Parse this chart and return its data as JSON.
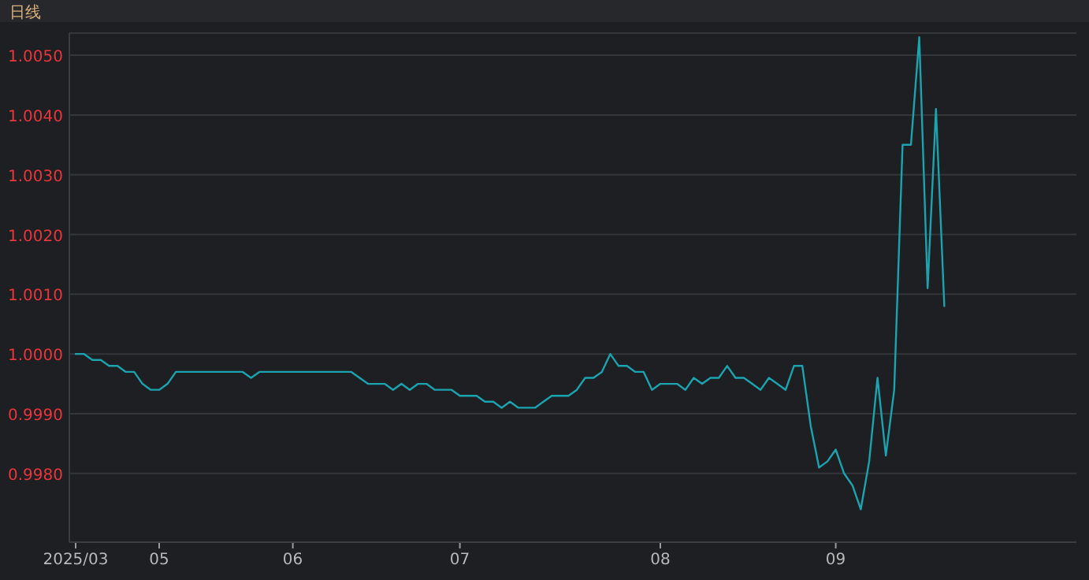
{
  "chart_data": {
    "type": "line",
    "title": "日线",
    "categories": [
      "2025/03",
      null,
      null,
      null,
      null,
      null,
      null,
      null,
      null,
      null,
      "05",
      null,
      null,
      null,
      null,
      null,
      null,
      null,
      null,
      null,
      null,
      null,
      null,
      null,
      null,
      null,
      "06",
      null,
      null,
      null,
      null,
      null,
      null,
      null,
      null,
      null,
      null,
      null,
      null,
      null,
      null,
      null,
      null,
      null,
      null,
      null,
      "07",
      null,
      null,
      null,
      null,
      null,
      null,
      null,
      null,
      null,
      null,
      null,
      null,
      null,
      null,
      null,
      null,
      null,
      null,
      null,
      null,
      null,
      null,
      null,
      "08",
      null,
      null,
      null,
      null,
      null,
      null,
      null,
      null,
      null,
      null,
      null,
      null,
      null,
      null,
      null,
      null,
      null,
      null,
      null,
      null,
      "09",
      null,
      null,
      null,
      null,
      null,
      null,
      null,
      null,
      null,
      null,
      null,
      null,
      null
    ],
    "series": [
      {
        "color": "#1ba3b0",
        "values": [
          1.0,
          1.0,
          0.9999,
          0.9999,
          0.9998,
          0.9998,
          0.9997,
          0.9997,
          0.9995,
          0.9994,
          0.9994,
          0.9995,
          0.9997,
          0.9997,
          0.9997,
          0.9997,
          0.9997,
          0.9997,
          0.9997,
          0.9997,
          0.9997,
          0.9996,
          0.9997,
          0.9997,
          0.9997,
          0.9997,
          0.9997,
          0.9997,
          0.9997,
          0.9997,
          0.9997,
          0.9997,
          0.9997,
          0.9997,
          0.9996,
          0.9995,
          0.9995,
          0.9995,
          0.9994,
          0.9995,
          0.9994,
          0.9995,
          0.9995,
          0.9994,
          0.9994,
          0.9994,
          0.9993,
          0.9993,
          0.9993,
          0.9992,
          0.9992,
          0.9991,
          0.9992,
          0.9991,
          0.9991,
          0.9991,
          0.9992,
          0.9993,
          0.9993,
          0.9993,
          0.9994,
          0.9996,
          0.9996,
          0.9997,
          1.0,
          0.9998,
          0.9998,
          0.9997,
          0.9997,
          0.9994,
          0.9995,
          0.9995,
          0.9995,
          0.9994,
          0.9996,
          0.9995,
          0.9996,
          0.9996,
          0.9998,
          0.9996,
          0.9996,
          0.9995,
          0.9994,
          0.9996,
          0.9995,
          0.9994,
          0.9998,
          0.9998,
          0.9988,
          0.9981,
          0.9982,
          0.9984,
          0.998,
          0.9978,
          0.9974,
          0.9982,
          0.9996,
          0.9983,
          0.9994,
          1.0035,
          1.0035,
          1.0053,
          1.0011,
          1.0041,
          1.0008
        ]
      }
    ],
    "ylim": [
      0.99685,
      1.00537
    ],
    "yticks": [
      {
        "value": 0.998,
        "label": "0.9980"
      },
      {
        "value": 0.999,
        "label": "0.9990"
      },
      {
        "value": 1.0,
        "label": "1.0000"
      },
      {
        "value": 1.001,
        "label": "1.0010"
      },
      {
        "value": 1.002,
        "label": "1.0020"
      },
      {
        "value": 1.003,
        "label": "1.0030"
      },
      {
        "value": 1.004,
        "label": "1.0040"
      },
      {
        "value": 1.005,
        "label": "1.0050"
      }
    ],
    "grid": "y",
    "marker": "none",
    "line_style": "solid"
  }
}
